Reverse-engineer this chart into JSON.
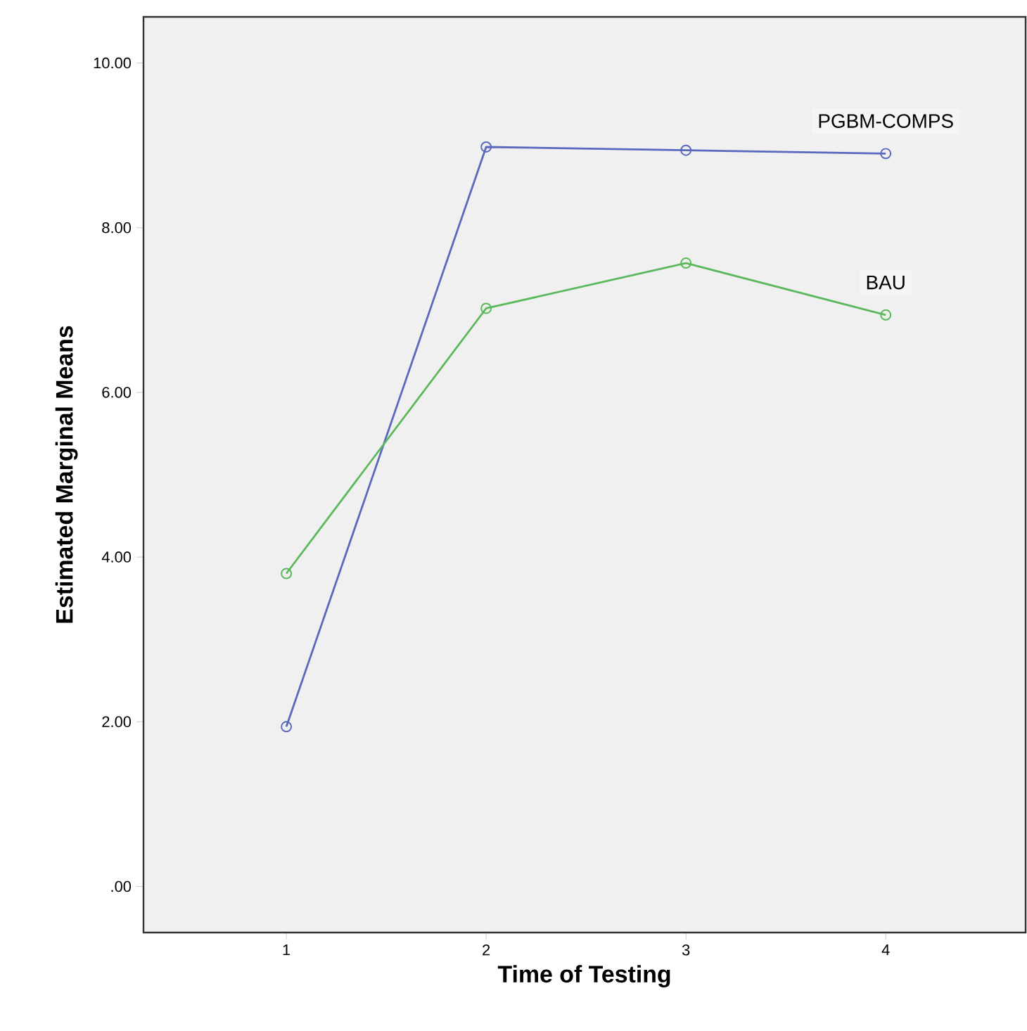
{
  "chart_data": {
    "type": "line",
    "xlabel": "Time of Testing",
    "ylabel": "Estimated Marginal Means",
    "categories": [
      "1",
      "2",
      "3",
      "4"
    ],
    "series": [
      {
        "name": "PGBM-COMPS",
        "color": "#5a68bd",
        "values": [
          1.94,
          8.98,
          8.94,
          8.9
        ]
      },
      {
        "name": "BAU",
        "color": "#5cb85c",
        "values": [
          3.8,
          7.02,
          7.57,
          6.94
        ]
      }
    ],
    "ylim": [
      -0.56,
      10.56
    ],
    "yticks": [
      {
        "value": 0,
        "label": ".00"
      },
      {
        "value": 2,
        "label": "2.00"
      },
      {
        "value": 4,
        "label": "4.00"
      },
      {
        "value": 6,
        "label": "6.00"
      },
      {
        "value": 8,
        "label": "8.00"
      },
      {
        "value": 10,
        "label": "10.00"
      }
    ],
    "grid": false,
    "legend": false,
    "marker": "circle",
    "line_style": "solid"
  }
}
